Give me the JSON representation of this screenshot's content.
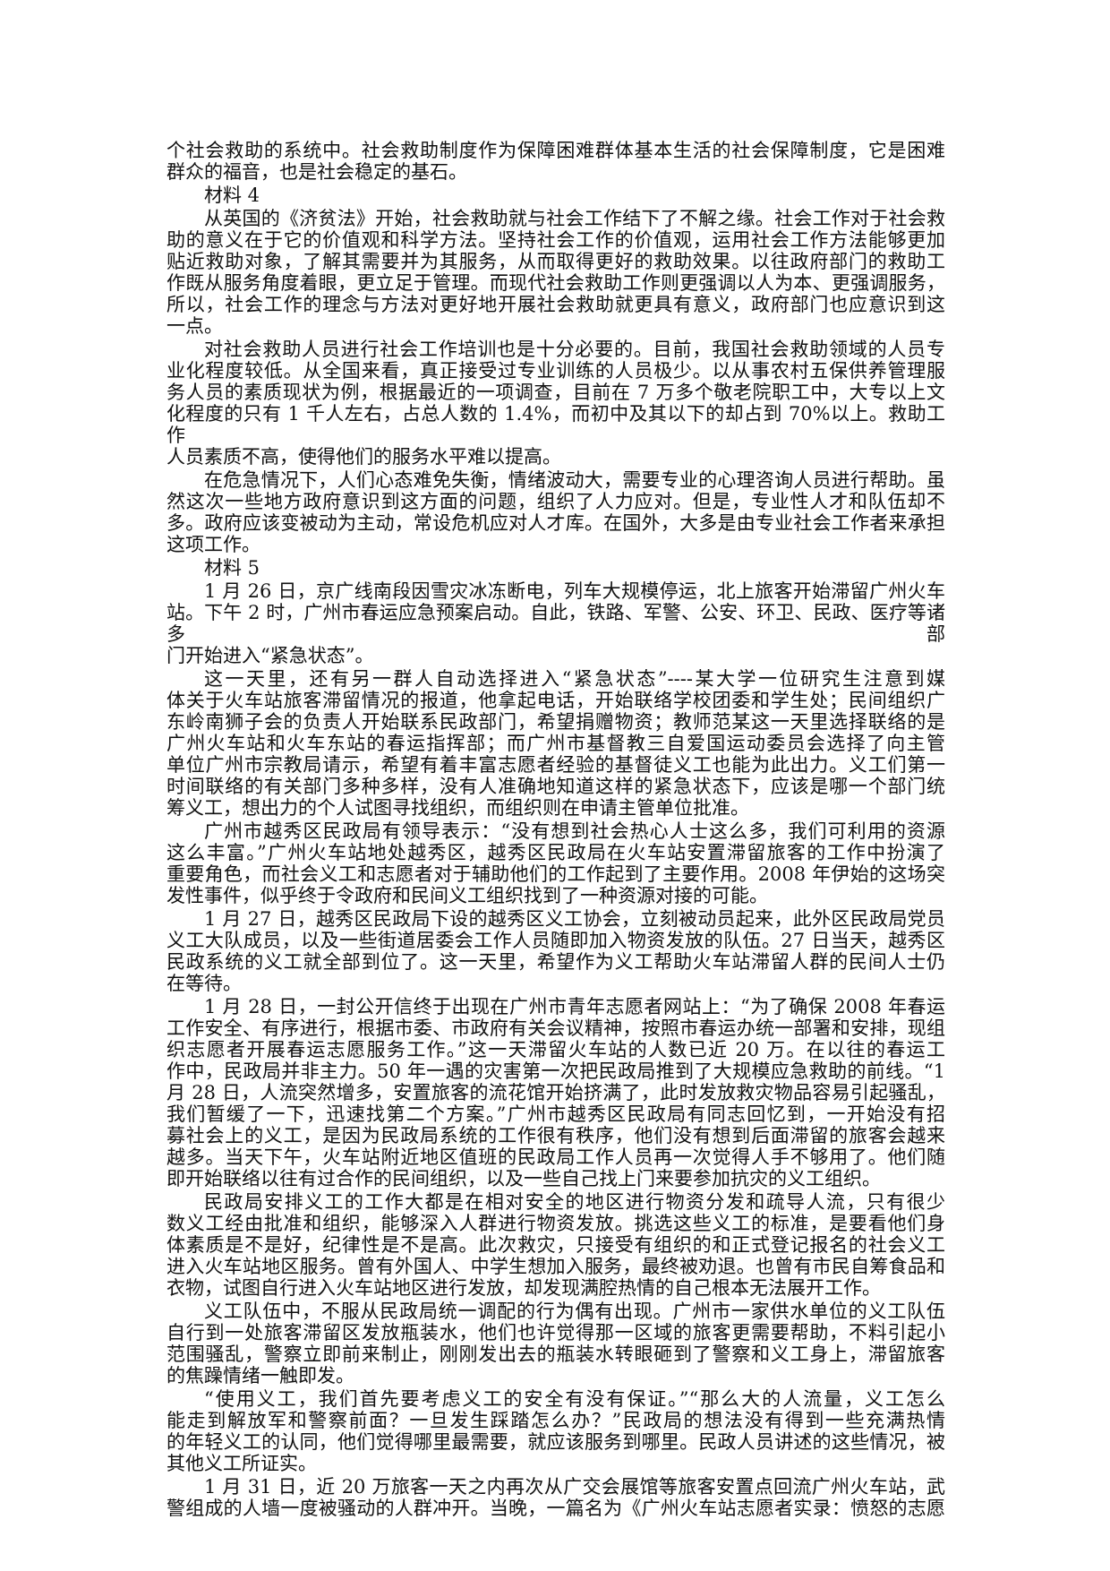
{
  "document": {
    "paragraphs": [
      {
        "indent": false,
        "lines": [
          "个社会救助的系统中。社会救助制度作为保障困难群体基本生活的社会保障制度，它是困难",
          "群众的福音，也是社会稳定的基石。"
        ]
      },
      {
        "indent": true,
        "heading": true,
        "lines": [
          "材料 4"
        ]
      },
      {
        "indent": true,
        "lines": [
          "从英国的《济贫法》开始，社会救助就与社会工作结下了不解之缘。社会工作对于社会救",
          "助的意义在于它的价值观和科学方法。坚持社会工作的价值观，运用社会工作方法能够更加",
          "贴近救助对象，了解其需要并为其服务，从而取得更好的救助效果。以往政府部门的救助工",
          "作既从服务角度着眼，更立足于管理。而现代社会救助工作则更强调以人为本、更强调服务，",
          "所以，社会工作的理念与方法对更好地开展社会救助就更具有意义，政府部门也应意识到这",
          "一点。"
        ]
      },
      {
        "indent": true,
        "lines": [
          "对社会救助人员进行社会工作培训也是十分必要的。目前，我国社会救助领域的人员专",
          "业化程度较低。从全国来看，真正接受过专业训练的人员极少。以从事农村五保供养管理服",
          "务人员的素质现状为例，根据最近的一项调查，目前在 7 万多个敬老院职工中，大专以上文",
          "化程度的只有 1 千人左右，占总人数的 1.4%，而初中及其以下的却占到 70%以上。救助工作",
          "人员素质不高，使得他们的服务水平难以提高。"
        ]
      },
      {
        "indent": true,
        "lines": [
          "在危急情况下，人们心态难免失衡，情绪波动大，需要专业的心理咨询人员进行帮助。虽",
          "然这次一些地方政府意识到这方面的问题，组织了人力应对。但是，专业性人才和队伍却不",
          "多。政府应该变被动为主动，常设危机应对人才库。在国外，大多是由专业社会工作者来承担",
          "这项工作。"
        ]
      },
      {
        "indent": true,
        "heading": true,
        "lines": [
          "材料 5"
        ]
      },
      {
        "indent": true,
        "lines": [
          "1 月 26 日，京广线南段因雪灾冰冻断电，列车大规模停运，北上旅客开始滞留广州火车",
          "站。下午 2 时，广州市春运应急预案启动。自此，铁路、军警、公安、环卫、民政、医疗等诸多部",
          "门开始进入“紧急状态”。"
        ]
      },
      {
        "indent": true,
        "lines": [
          "这一天里，还有另一群人自动选择进入“紧急状态”----某大学一位研究生注意到媒",
          "体关于火车站旅客滞留情况的报道，他拿起电话，开始联络学校团委和学生处；民间组织广",
          "东岭南狮子会的负责人开始联系民政部门，希望捐赠物资；教师范某这一天里选择联络的是",
          "广州火车站和火车东站的春运指挥部；而广州市基督教三自爱国运动委员会选择了向主管",
          "单位广州市宗教局请示，希望有着丰富志愿者经验的基督徒义工也能为此出力。义工们第一",
          "时间联络的有关部门多种多样，没有人准确地知道这样的紧急状态下，应该是哪一个部门统",
          "筹义工，想出力的个人试图寻找组织，而组织则在申请主管单位批准。"
        ]
      },
      {
        "indent": true,
        "lines": [
          "广州市越秀区民政局有领导表示：“没有想到社会热心人士这么多，我们可利用的资源",
          "这么丰富。”广州火车站地处越秀区，越秀区民政局在火车站安置滞留旅客的工作中扮演了",
          "重要角色，而社会义工和志愿者对于辅助他们的工作起到了主要作用。2008 年伊始的这场突",
          "发性事件，似乎终于令政府和民间义工组织找到了一种资源对接的可能。"
        ]
      },
      {
        "indent": true,
        "lines": [
          "1 月 27 日，越秀区民政局下设的越秀区义工协会，立刻被动员起来，此外区民政局党员",
          "义工大队成员，以及一些街道居委会工作人员随即加入物资发放的队伍。27 日当天，越秀区",
          "民政系统的义工就全部到位了。这一天里，希望作为义工帮助火车站滞留人群的民间人士仍",
          "在等待。"
        ]
      },
      {
        "indent": true,
        "lines": [
          "1 月 28 日，一封公开信终于出现在广州市青年志愿者网站上：“为了确保 2008 年春运",
          "工作安全、有序进行，根据市委、市政府有关会议精神，按照市春运办统一部署和安排，现组",
          "织志愿者开展春运志愿服务工作。”这一天滞留火车站的人数已近 20 万。在以往的春运工",
          "作中，民政局并非主力。50 年一遇的灾害第一次把民政局推到了大规模应急救助的前线。“1",
          "月 28 日，人流突然增多，安置旅客的流花馆开始挤满了，此时发放救灾物品容易引起骚乱，",
          "我们暂缓了一下，迅速找第二个方案。”广州市越秀区民政局有同志回忆到，一开始没有招",
          "募社会上的义工，是因为民政局系统的工作很有秩序，他们没有想到后面滞留的旅客会越来",
          "越多。当天下午，火车站附近地区值班的民政局工作人员再一次觉得人手不够用了。他们随",
          "即开始联络以往有过合作的民间组织，以及一些自己找上门来要参加抗灾的义工组织。"
        ]
      },
      {
        "indent": true,
        "lines": [
          "民政局安排义工的工作大都是在相对安全的地区进行物资分发和疏导人流，只有很少",
          "数义工经由批准和组织，能够深入人群进行物资发放。挑选这些义工的标准，是要看他们身",
          "体素质是不是好，纪律性是不是高。此次救灾，只接受有组织的和正式登记报名的社会义工",
          "进入火车站地区服务。曾有外国人、中学生想加入服务，最终被劝退。也曾有市民自筹食品和",
          "衣物，试图自行进入火车站地区进行发放，却发现满腔热情的自己根本无法展开工作。"
        ]
      },
      {
        "indent": true,
        "lines": [
          "义工队伍中，不服从民政局统一调配的行为偶有出现。广州市一家供水单位的义工队伍",
          "自行到一处旅客滞留区发放瓶装水，他们也许觉得那一区域的旅客更需要帮助，不料引起小",
          "范围骚乱，警察立即前来制止，刚刚发出去的瓶装水转眼砸到了警察和义工身上，滞留旅客",
          "的焦躁情绪一触即发。"
        ]
      },
      {
        "indent": true,
        "lines": [
          "“使用义工，我们首先要考虑义工的安全有没有保证。”“那么大的人流量，义工怎么",
          "能走到解放军和警察前面？一旦发生踩踏怎么办？”民政局的想法没有得到一些充满热情",
          "的年轻义工的认同，他们觉得哪里最需要，就应该服务到哪里。民政人员讲述的这些情况，被",
          "其他义工所证实。"
        ]
      },
      {
        "indent": true,
        "continues": true,
        "lines": [
          "1 月 31 日，近 20 万旅客一天之内再次从广交会展馆等旅客安置点回流广州火车站，武",
          "警组成的人墙一度被骚动的人群冲开。当晚，一篇名为《广州火车站志愿者实录：愤怒的志愿"
        ]
      }
    ]
  }
}
